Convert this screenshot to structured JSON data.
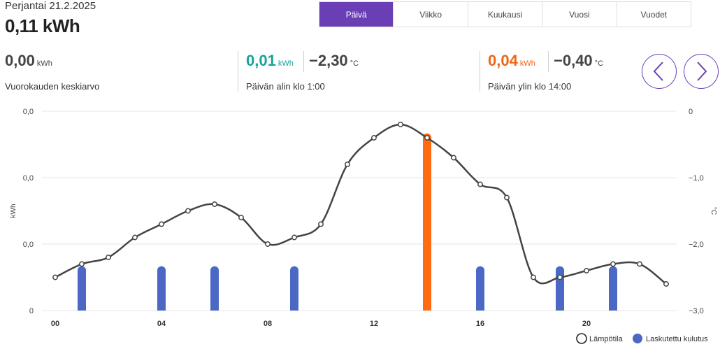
{
  "header": {
    "date": "Perjantai 21.2.2025",
    "total": "0,11 kWh"
  },
  "tabs": [
    {
      "label": "Päivä",
      "active": true
    },
    {
      "label": "Viikko",
      "active": false
    },
    {
      "label": "Kuukausi",
      "active": false
    },
    {
      "label": "Vuosi",
      "active": false
    },
    {
      "label": "Vuodet",
      "active": false
    }
  ],
  "stats": {
    "average": {
      "value": "0,00",
      "unit": "kWh",
      "caption": "Vuorokauden keskiarvo"
    },
    "min": {
      "value": "0,01",
      "unit": "kWh",
      "temp": "−2,30",
      "temp_unit": "°C",
      "caption": "Päivän alin klo 1:00"
    },
    "max": {
      "value": "0,04",
      "unit": "kWh",
      "temp": "−0,40",
      "temp_unit": "°C",
      "caption": "Päivän ylin klo 14:00"
    }
  },
  "nav": {
    "prev_icon": "chevron-left-icon",
    "next_icon": "chevron-right-icon"
  },
  "colors": {
    "accent": "#6a3fb5",
    "bar": "#4a68c4",
    "peak": "#ff6a13",
    "line": "#444444",
    "min": "#17a398",
    "max": "#f06414"
  },
  "chart_data": {
    "type": "bar",
    "left_axis": {
      "label": "kWh",
      "ticks": [
        "0,0",
        "0,0",
        "0,0",
        "0"
      ]
    },
    "right_axis": {
      "label": "°C",
      "ticks": [
        "0",
        "−1,0",
        "−2,0",
        "−3,0"
      ],
      "ylim": [
        -3,
        0
      ]
    },
    "x_ticks": [
      "00",
      "04",
      "08",
      "12",
      "16",
      "20"
    ],
    "x_tick_hours": [
      0,
      4,
      8,
      12,
      16,
      20
    ],
    "hours": [
      0,
      1,
      2,
      3,
      4,
      5,
      6,
      7,
      8,
      9,
      10,
      11,
      12,
      13,
      14,
      15,
      16,
      17,
      18,
      19,
      20,
      21,
      22,
      23
    ],
    "series": [
      {
        "name": "Laskutettu kulutus",
        "type": "bar",
        "values": [
          0,
          0.01,
          0,
          0,
          0.01,
          0,
          0.01,
          0,
          0,
          0.01,
          0,
          0,
          0,
          0,
          0.04,
          0,
          0.01,
          0,
          0,
          0.01,
          0,
          0.01,
          0,
          0
        ],
        "peak_hour": 14
      },
      {
        "name": "Lämpötila",
        "type": "line",
        "values": [
          -2.5,
          -2.3,
          -2.2,
          -1.9,
          -1.7,
          -1.5,
          -1.4,
          -1.6,
          -2.0,
          -1.9,
          -1.7,
          -0.8,
          -0.4,
          -0.2,
          -0.4,
          -0.7,
          -1.1,
          -1.3,
          -2.5,
          -2.5,
          -2.4,
          -2.3,
          -2.3,
          -2.6
        ]
      }
    ],
    "legend": [
      "Lämpötila",
      "Laskutettu kulutus"
    ],
    "ylim_kwh": [
      0,
      0.045
    ]
  }
}
